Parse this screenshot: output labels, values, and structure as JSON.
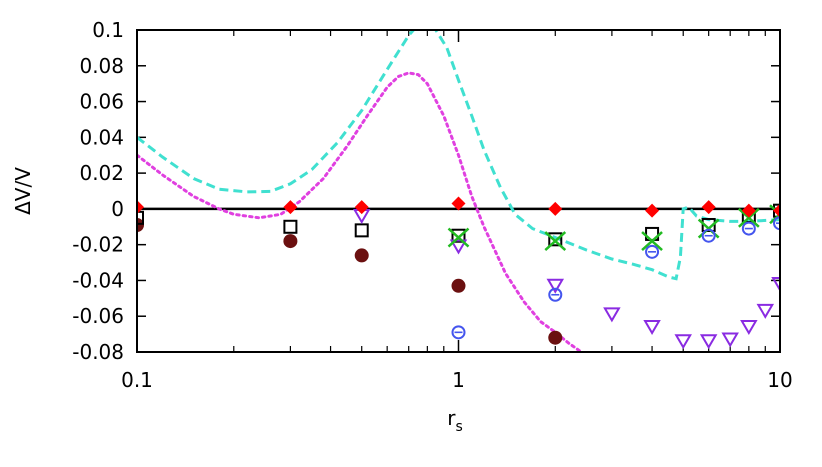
{
  "chart_data": {
    "type": "scatter",
    "title": "",
    "xlabel_main": "r",
    "xlabel_sub": "s",
    "ylabel": "ΔV/V",
    "x_scale": "log",
    "xlim": [
      0.1,
      10
    ],
    "ylim": [
      -0.08,
      0.1
    ],
    "x_ticks": [
      {
        "value": 0.1,
        "label": "0.1"
      },
      {
        "value": 1,
        "label": "1"
      },
      {
        "value": 10,
        "label": "10"
      }
    ],
    "y_ticks": [
      {
        "value": 0.1,
        "label": "0.1"
      },
      {
        "value": 0.08,
        "label": "0.08"
      },
      {
        "value": 0.06,
        "label": "0.06"
      },
      {
        "value": 0.04,
        "label": "0.04"
      },
      {
        "value": 0.02,
        "label": "0.02"
      },
      {
        "value": 0,
        "label": "0"
      },
      {
        "value": -0.02,
        "label": "-0.02"
      },
      {
        "value": -0.04,
        "label": "-0.04"
      },
      {
        "value": -0.06,
        "label": "-0.06"
      },
      {
        "value": -0.08,
        "label": "-0.08"
      }
    ],
    "zero_line": true,
    "legend": "none",
    "series": [
      {
        "marker": "dashed-line",
        "color": "#40e0d0",
        "points": [
          [
            0.1,
            0.04
          ],
          [
            0.12,
            0.029
          ],
          [
            0.15,
            0.017
          ],
          [
            0.18,
            0.011
          ],
          [
            0.22,
            0.0095
          ],
          [
            0.26,
            0.0098
          ],
          [
            0.3,
            0.014
          ],
          [
            0.35,
            0.022
          ],
          [
            0.42,
            0.037
          ],
          [
            0.5,
            0.055
          ],
          [
            0.6,
            0.078
          ],
          [
            0.7,
            0.097
          ],
          [
            0.75,
            0.103
          ],
          [
            0.8,
            0.105
          ],
          [
            0.85,
            0.1
          ],
          [
            0.92,
            0.09
          ],
          [
            1.0,
            0.072
          ],
          [
            1.1,
            0.052
          ],
          [
            1.2,
            0.033
          ],
          [
            1.35,
            0.012
          ],
          [
            1.5,
            -0.003
          ],
          [
            1.7,
            -0.011
          ],
          [
            2.0,
            -0.016
          ],
          [
            2.5,
            -0.023
          ],
          [
            3.0,
            -0.028
          ],
          [
            3.5,
            -0.031
          ],
          [
            4.0,
            -0.034
          ],
          [
            4.5,
            -0.038
          ],
          [
            4.75,
            -0.039
          ],
          [
            4.9,
            -0.027
          ],
          [
            5.0,
            0.0
          ],
          [
            5.2,
            0.001
          ],
          [
            5.5,
            -0.004
          ],
          [
            6.0,
            -0.006
          ],
          [
            7.0,
            -0.007
          ],
          [
            8.0,
            -0.007
          ],
          [
            10.0,
            -0.006
          ]
        ]
      },
      {
        "marker": "dotted-line",
        "color": "#e040e0",
        "points": [
          [
            0.1,
            0.03
          ],
          [
            0.12,
            0.019
          ],
          [
            0.15,
            0.007
          ],
          [
            0.18,
            0.0
          ],
          [
            0.2,
            -0.003
          ],
          [
            0.24,
            -0.005
          ],
          [
            0.28,
            -0.003
          ],
          [
            0.32,
            0.004
          ],
          [
            0.38,
            0.017
          ],
          [
            0.45,
            0.035
          ],
          [
            0.52,
            0.052
          ],
          [
            0.6,
            0.068
          ],
          [
            0.65,
            0.074
          ],
          [
            0.7,
            0.076
          ],
          [
            0.75,
            0.075
          ],
          [
            0.8,
            0.07
          ],
          [
            0.9,
            0.052
          ],
          [
            1.0,
            0.03
          ],
          [
            1.1,
            0.007
          ],
          [
            1.2,
            -0.01
          ],
          [
            1.4,
            -0.036
          ],
          [
            1.6,
            -0.052
          ],
          [
            1.8,
            -0.063
          ],
          [
            2.0,
            -0.069
          ],
          [
            2.2,
            -0.075
          ],
          [
            2.5,
            -0.082
          ]
        ]
      },
      {
        "marker": "filled-circle",
        "color": "#6b1010",
        "points": [
          [
            0.1,
            -0.009
          ],
          [
            0.3,
            -0.018
          ],
          [
            0.5,
            -0.026
          ],
          [
            1.0,
            -0.043
          ],
          [
            2.0,
            -0.072
          ]
        ]
      },
      {
        "marker": "open-square",
        "color": "#000000",
        "points": [
          [
            0.1,
            -0.005
          ],
          [
            0.3,
            -0.01
          ],
          [
            0.5,
            -0.012
          ],
          [
            1.0,
            -0.015
          ],
          [
            2.0,
            -0.017
          ],
          [
            4.0,
            -0.014
          ],
          [
            6.0,
            -0.009
          ],
          [
            8.0,
            -0.004
          ],
          [
            10.0,
            -0.001
          ]
        ]
      },
      {
        "marker": "open-triangle-down",
        "color": "#8a2be2",
        "points": [
          [
            0.5,
            -0.004
          ],
          [
            1.0,
            -0.021
          ],
          [
            2.0,
            -0.043
          ],
          [
            3.0,
            -0.059
          ],
          [
            4.0,
            -0.066
          ],
          [
            5.0,
            -0.074
          ],
          [
            6.0,
            -0.074
          ],
          [
            7.0,
            -0.073
          ],
          [
            8.0,
            -0.066
          ],
          [
            9.0,
            -0.057
          ],
          [
            10.0,
            -0.042
          ]
        ]
      },
      {
        "marker": "cross",
        "color": "#22bb22",
        "points": [
          [
            1.0,
            -0.016
          ],
          [
            2.0,
            -0.018
          ],
          [
            4.0,
            -0.018
          ],
          [
            6.0,
            -0.011
          ],
          [
            8.0,
            -0.005
          ],
          [
            10.0,
            -0.003
          ]
        ]
      },
      {
        "marker": "open-circle-plus",
        "color": "#4455ee",
        "points": [
          [
            1.0,
            -0.069
          ],
          [
            2.0,
            -0.048
          ],
          [
            4.0,
            -0.024
          ],
          [
            6.0,
            -0.015
          ],
          [
            8.0,
            -0.011
          ],
          [
            10.0,
            -0.008
          ]
        ]
      },
      {
        "marker": "filled-diamond",
        "color": "#ff0000",
        "points": [
          [
            0.1,
            0.001
          ],
          [
            0.3,
            0.001
          ],
          [
            0.5,
            0.001
          ],
          [
            1.0,
            0.003
          ],
          [
            2.0,
            0.0
          ],
          [
            4.0,
            -0.001
          ],
          [
            6.0,
            0.001
          ],
          [
            8.0,
            -0.001
          ],
          [
            10.0,
            -0.001
          ]
        ]
      }
    ]
  }
}
